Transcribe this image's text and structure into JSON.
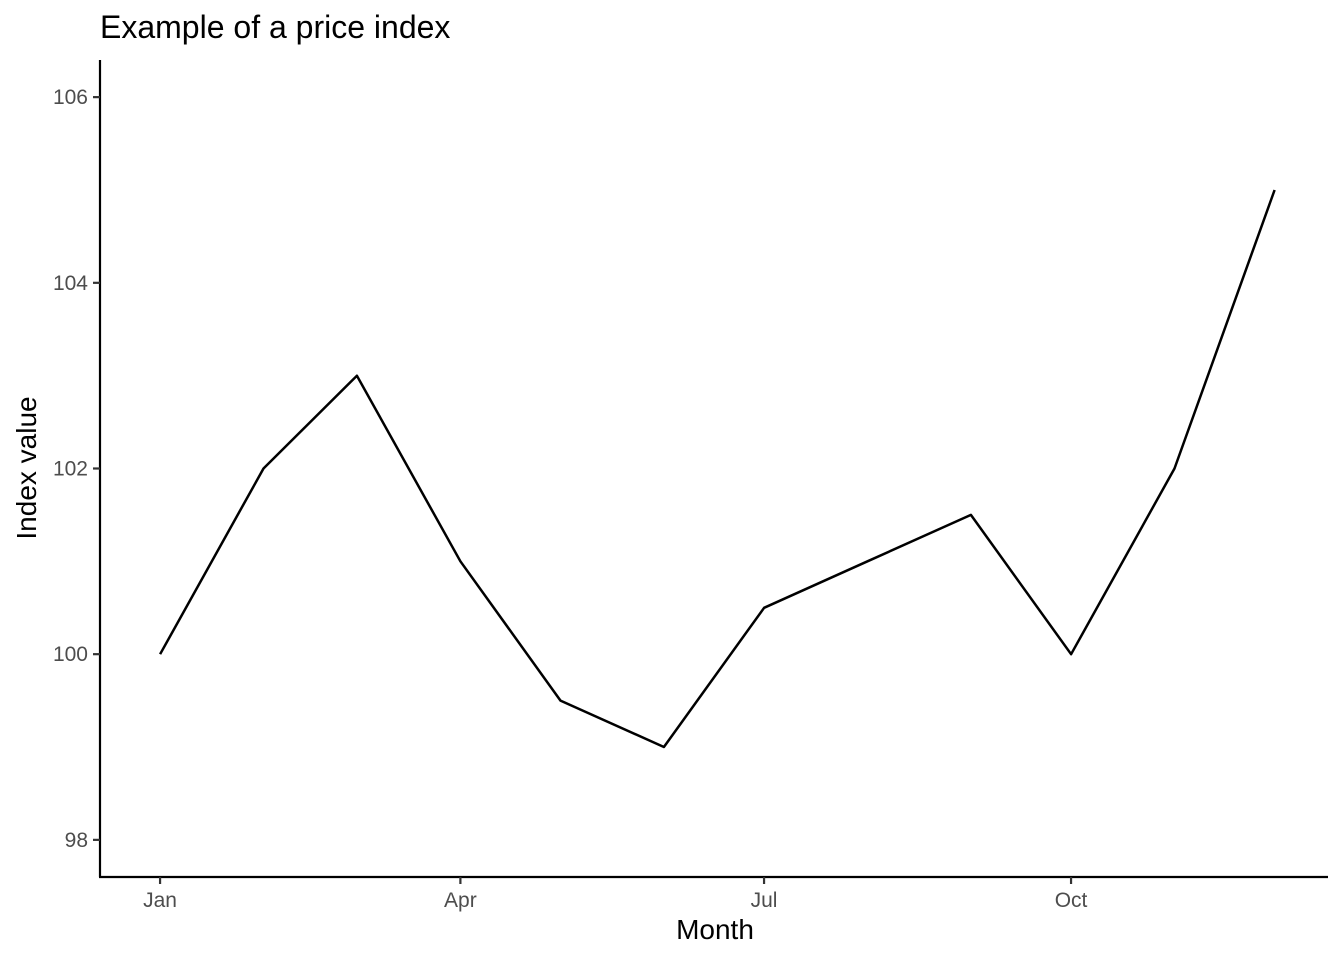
{
  "chart_data": {
    "type": "line",
    "title": "Example of a price index",
    "xlabel": "Month",
    "ylabel": "Index value",
    "x": [
      "2023-01-01",
      "2023-02-01",
      "2023-03-01",
      "2023-04-01",
      "2023-05-01",
      "2023-06-01",
      "2023-07-01",
      "2023-08-01",
      "2023-09-01",
      "2023-10-01",
      "2023-11-01",
      "2023-12-01"
    ],
    "values": [
      100,
      102,
      103,
      101,
      99.5,
      99,
      100.5,
      101,
      101.5,
      100,
      102,
      105
    ],
    "x_ticks": [
      {
        "label": "Jan",
        "date": "2023-01-01"
      },
      {
        "label": "Apr",
        "date": "2023-04-01"
      },
      {
        "label": "Jul",
        "date": "2023-07-01"
      },
      {
        "label": "Oct",
        "date": "2023-10-01"
      }
    ],
    "y_ticks": [
      98,
      100,
      102,
      104,
      106
    ],
    "ylim": [
      97.6,
      106.4
    ],
    "xlim": [
      "2022-12-14",
      "2023-12-17"
    ],
    "grid": false,
    "line_color": "#000000"
  }
}
